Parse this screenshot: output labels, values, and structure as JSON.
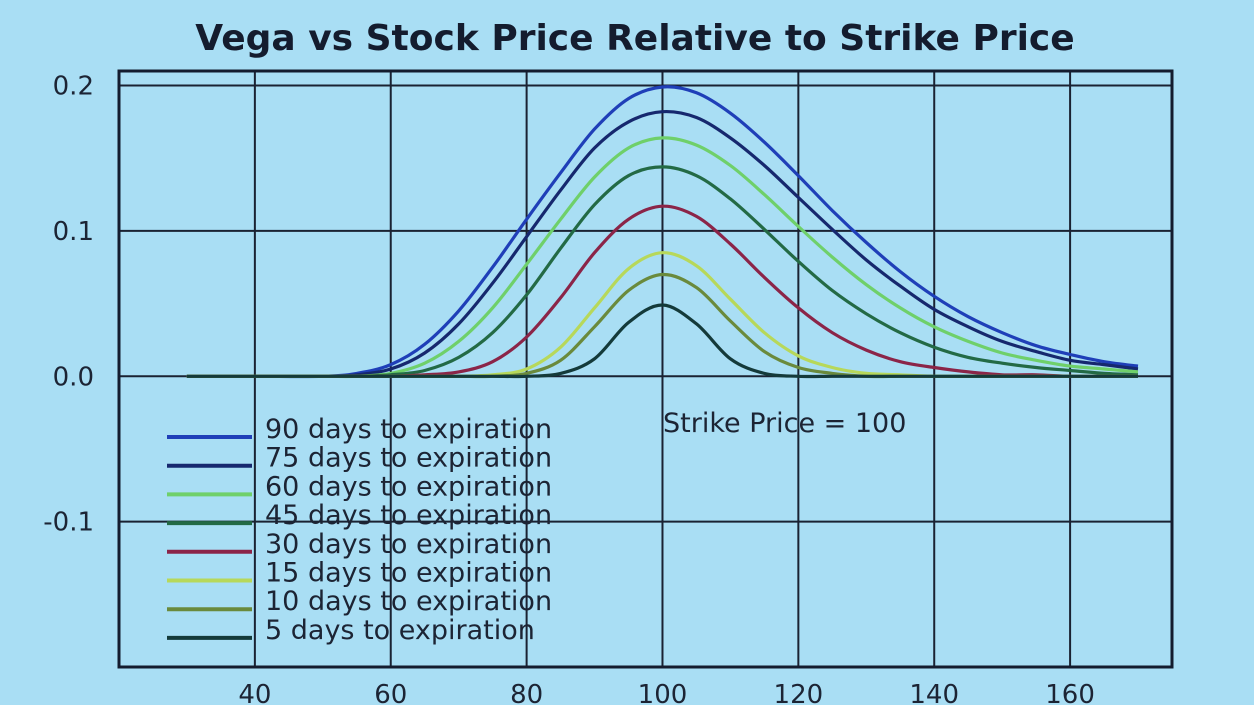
{
  "chart_data": {
    "type": "line",
    "title": "Vega vs Stock Price Relative to Strike Price",
    "xlabel": "",
    "ylabel": "",
    "xlim": [
      20,
      175
    ],
    "ylim": [
      -0.2,
      0.21
    ],
    "x_ticks": [
      40,
      60,
      80,
      100,
      120,
      140,
      160
    ],
    "y_ticks": [
      {
        "value": 0.2,
        "label": "0.2"
      },
      {
        "value": 0.1,
        "label": "0.1"
      },
      {
        "value": 0.0,
        "label": "0.0"
      },
      {
        "value": -0.1,
        "label": "-0.1"
      }
    ],
    "grid": true,
    "legend_position": "bottom-left",
    "annotation": "Strike Price = 100",
    "x": [
      30,
      40,
      50,
      55,
      60,
      65,
      70,
      75,
      80,
      85,
      90,
      95,
      100,
      105,
      110,
      115,
      120,
      125,
      130,
      135,
      140,
      145,
      150,
      155,
      160,
      165,
      170
    ],
    "series": [
      {
        "name": "90 days to expiration",
        "color": "#1f3fb8",
        "values": [
          0.0,
          0.0,
          0.0,
          0.002,
          0.008,
          0.022,
          0.045,
          0.075,
          0.108,
          0.14,
          0.17,
          0.191,
          0.199,
          0.195,
          0.181,
          0.161,
          0.138,
          0.114,
          0.092,
          0.072,
          0.055,
          0.041,
          0.03,
          0.021,
          0.015,
          0.01,
          0.007
        ]
      },
      {
        "name": "75 days to expiration",
        "color": "#16286e",
        "values": [
          0.0,
          0.0,
          0.0,
          0.001,
          0.005,
          0.016,
          0.036,
          0.064,
          0.096,
          0.128,
          0.157,
          0.175,
          0.182,
          0.178,
          0.164,
          0.145,
          0.123,
          0.101,
          0.08,
          0.062,
          0.046,
          0.034,
          0.024,
          0.017,
          0.011,
          0.008,
          0.005
        ]
      },
      {
        "name": "60 days to expiration",
        "color": "#6fd06a",
        "values": [
          0.0,
          0.0,
          0.0,
          0.0,
          0.002,
          0.009,
          0.024,
          0.047,
          0.077,
          0.108,
          0.137,
          0.157,
          0.164,
          0.159,
          0.145,
          0.125,
          0.103,
          0.082,
          0.063,
          0.047,
          0.034,
          0.024,
          0.016,
          0.011,
          0.007,
          0.005,
          0.003
        ]
      },
      {
        "name": "45 days to expiration",
        "color": "#236a45",
        "values": [
          0.0,
          0.0,
          0.0,
          0.0,
          0.001,
          0.004,
          0.013,
          0.03,
          0.056,
          0.088,
          0.118,
          0.138,
          0.144,
          0.138,
          0.122,
          0.101,
          0.079,
          0.059,
          0.043,
          0.03,
          0.02,
          0.013,
          0.009,
          0.006,
          0.004,
          0.002,
          0.001
        ]
      },
      {
        "name": "30 days to expiration",
        "color": "#8b2548",
        "values": [
          0.0,
          0.0,
          0.0,
          0.0,
          0.0,
          0.001,
          0.003,
          0.01,
          0.027,
          0.054,
          0.085,
          0.108,
          0.117,
          0.11,
          0.091,
          0.068,
          0.047,
          0.03,
          0.018,
          0.01,
          0.006,
          0.003,
          0.001,
          0.001,
          0.0,
          0.0,
          0.0
        ]
      },
      {
        "name": "15 days to expiration",
        "color": "#b7d85a",
        "values": [
          0.0,
          0.0,
          0.0,
          0.0,
          0.0,
          0.0,
          0.0,
          0.001,
          0.005,
          0.02,
          0.047,
          0.074,
          0.085,
          0.076,
          0.053,
          0.03,
          0.014,
          0.006,
          0.002,
          0.001,
          0.0,
          0.0,
          0.0,
          0.0,
          0.0,
          0.0,
          0.0
        ]
      },
      {
        "name": "10 days to expiration",
        "color": "#6a8a3c",
        "values": [
          0.0,
          0.0,
          0.0,
          0.0,
          0.0,
          0.0,
          0.0,
          0.0,
          0.002,
          0.011,
          0.034,
          0.059,
          0.07,
          0.061,
          0.038,
          0.017,
          0.006,
          0.002,
          0.0,
          0.0,
          0.0,
          0.0,
          0.0,
          0.0,
          0.0,
          0.0,
          0.0
        ]
      },
      {
        "name": "5 days to expiration",
        "color": "#143a3a",
        "values": [
          0.0,
          0.0,
          0.0,
          0.0,
          0.0,
          0.0,
          0.0,
          0.0,
          0.0,
          0.002,
          0.012,
          0.037,
          0.049,
          0.036,
          0.012,
          0.002,
          0.0,
          0.0,
          0.0,
          0.0,
          0.0,
          0.0,
          0.0,
          0.0,
          0.0,
          0.0,
          0.0
        ]
      }
    ]
  }
}
